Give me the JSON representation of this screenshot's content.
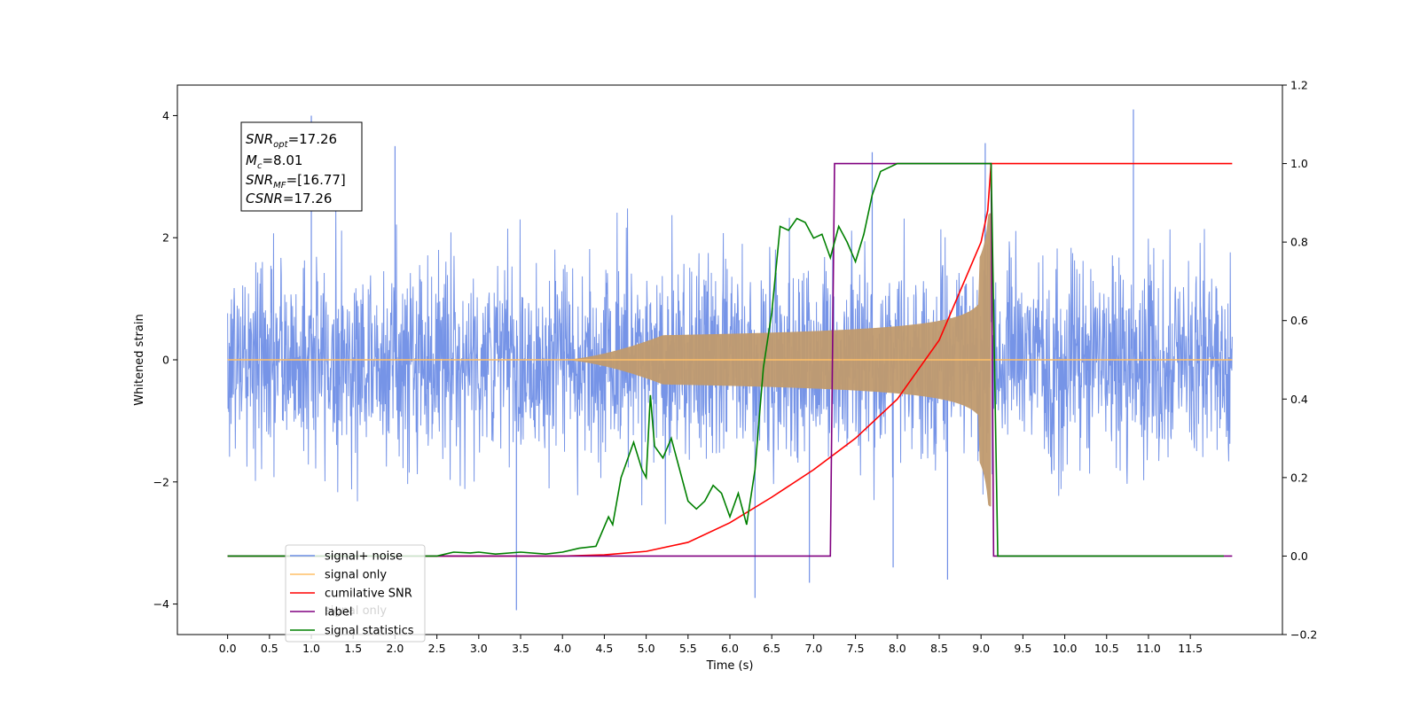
{
  "chart_data": {
    "type": "line",
    "title": "",
    "xlabel": "Time (s)",
    "ylabel_left": "Whitened strain",
    "ylabel_right": "",
    "xlim": [
      -0.6,
      12.6
    ],
    "ylim_left": [
      -4.5,
      4.5
    ],
    "ylim_right": [
      -0.2,
      1.2
    ],
    "x_ticks": [
      0.0,
      0.5,
      1.0,
      1.5,
      2.0,
      2.5,
      3.0,
      3.5,
      4.0,
      4.5,
      5.0,
      5.5,
      6.0,
      6.5,
      7.0,
      7.5,
      8.0,
      8.5,
      9.0,
      9.5,
      10.0,
      10.5,
      11.0,
      11.5
    ],
    "x_tick_labels": [
      "0.0",
      "0.5",
      "1.0",
      "1.5",
      "2.0",
      "2.5",
      "3.0",
      "3.5",
      "4.0",
      "4.5",
      "5.0",
      "5.5",
      "6.0",
      "6.5",
      "7.0",
      "7.5",
      "8.0",
      "8.5",
      "9.0",
      "9.5",
      "10.0",
      "10.5",
      "11.0",
      "11.5"
    ],
    "y_left_ticks": [
      -4,
      -2,
      0,
      2,
      4
    ],
    "y_left_tick_labels": [
      "−4",
      "−2",
      "0",
      "2",
      "4"
    ],
    "y_right_ticks": [
      -0.2,
      0.0,
      0.2,
      0.4,
      0.6,
      0.8,
      1.0,
      1.2
    ],
    "y_right_tick_labels": [
      "−0.2",
      "0.0",
      "0.2",
      "0.4",
      "0.6",
      "0.8",
      "1.0",
      "1.2"
    ],
    "grid": false,
    "legend_position": "lower-left",
    "series": [
      {
        "name": "signal+ noise",
        "axis": "left",
        "color": "#6f8ee6",
        "description_values": {
          "x_range": [
            0.0,
            12.0
          ],
          "typical_range": [
            -2.2,
            2.2
          ],
          "max": 4.1,
          "min": -4.1
        }
      },
      {
        "name": "signal only",
        "axis": "left",
        "color": "#ffbf66",
        "chirp": {
          "start": 4.0,
          "merger": 9.12,
          "peak_amplitude": 2.4
        }
      },
      {
        "name": "cumilative SNR",
        "axis": "right",
        "color": "#ff0000",
        "x": [
          0.0,
          4.0,
          4.5,
          5.0,
          5.5,
          6.0,
          6.5,
          7.0,
          7.5,
          8.0,
          8.5,
          9.0,
          9.08,
          9.12,
          12.0
        ],
        "y": [
          0.0,
          0.0,
          0.003,
          0.012,
          0.035,
          0.085,
          0.15,
          0.22,
          0.3,
          0.4,
          0.55,
          0.8,
          0.88,
          1.0,
          1.0
        ]
      },
      {
        "name": "label",
        "axis": "right",
        "color": "#800080",
        "x": [
          0.0,
          7.2,
          7.25,
          9.12,
          9.15,
          12.0
        ],
        "y": [
          0.0,
          0.0,
          1.0,
          1.0,
          0.0,
          0.0
        ]
      },
      {
        "name": "signal statistics",
        "axis": "right",
        "color": "#008000",
        "x": [
          0.0,
          2.5,
          2.7,
          2.9,
          3.0,
          3.2,
          3.5,
          3.8,
          4.0,
          4.2,
          4.4,
          4.55,
          4.6,
          4.7,
          4.85,
          4.95,
          5.0,
          5.05,
          5.1,
          5.2,
          5.3,
          5.4,
          5.5,
          5.6,
          5.7,
          5.8,
          5.9,
          6.0,
          6.1,
          6.2,
          6.3,
          6.4,
          6.5,
          6.6,
          6.7,
          6.8,
          6.9,
          7.0,
          7.1,
          7.2,
          7.3,
          7.4,
          7.5,
          7.6,
          7.7,
          7.8,
          8.0,
          8.3,
          9.05,
          9.12,
          9.2,
          11.9
        ],
        "y": [
          0.0,
          0.0,
          0.01,
          0.008,
          0.01,
          0.005,
          0.01,
          0.005,
          0.01,
          0.02,
          0.025,
          0.1,
          0.08,
          0.2,
          0.29,
          0.22,
          0.2,
          0.41,
          0.28,
          0.25,
          0.3,
          0.22,
          0.14,
          0.12,
          0.14,
          0.18,
          0.16,
          0.1,
          0.16,
          0.08,
          0.22,
          0.48,
          0.62,
          0.84,
          0.83,
          0.86,
          0.85,
          0.81,
          0.82,
          0.76,
          0.84,
          0.8,
          0.75,
          0.82,
          0.92,
          0.98,
          1.0,
          1.0,
          1.0,
          1.0,
          0.0,
          0.0
        ]
      }
    ],
    "legend": [
      "signal+ noise",
      "signal only",
      "cumilative SNR",
      "label",
      "signal statistics"
    ],
    "legend_overlap_text": "signal only",
    "info_box": {
      "snr_opt": {
        "base": "SNR",
        "sub": "opt",
        "value": "=17.26"
      },
      "mc": {
        "base": "M",
        "sub": "c",
        "value": "=8.01"
      },
      "snr_mf": {
        "base": "SNR",
        "sub": "MF",
        "value": "=[16.77]"
      },
      "csnr": {
        "base": "CSNR",
        "sub": "",
        "value": "=17.26"
      }
    }
  }
}
